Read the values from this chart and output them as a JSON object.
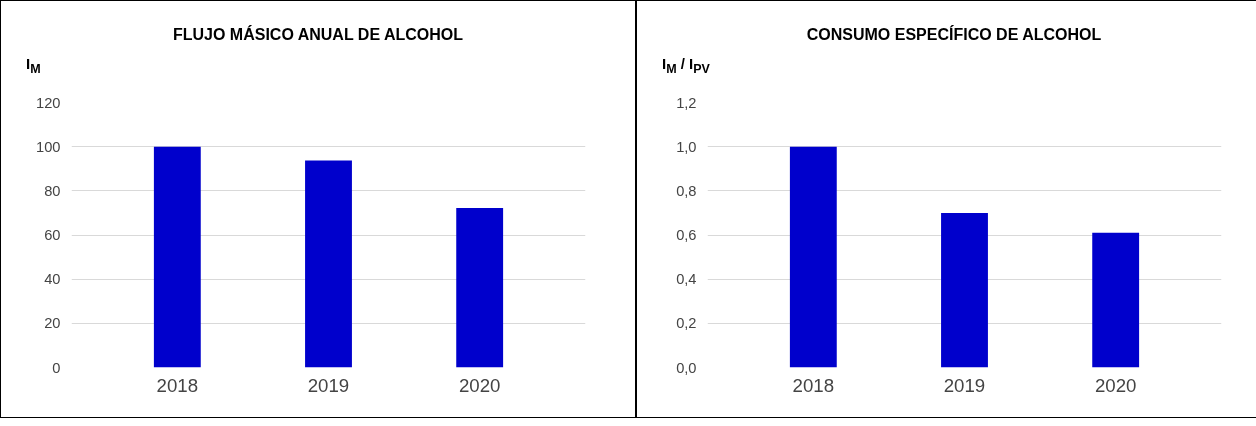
{
  "chart_data": [
    {
      "type": "bar",
      "title": "FLUJO MÁSICO ANUAL DE ALCOHOL",
      "ylabel": "I$_{M}$",
      "categories": [
        "2018",
        "2019",
        "2020"
      ],
      "values": [
        100,
        93.7,
        72.2
      ],
      "color": "#0000cc",
      "ylim": [
        0,
        120
      ],
      "yticks": [
        0,
        20,
        40,
        60,
        80,
        100,
        120
      ],
      "grid": "y"
    },
    {
      "type": "bar",
      "title": "CONSUMO ESPECÍFICO DE ALCOHOL",
      "ylabel": "I$_{M}$ / I$_{PV}$",
      "categories": [
        "2018",
        "2019",
        "2020"
      ],
      "values": [
        1.0,
        0.7,
        0.61
      ],
      "color": "#0000cc",
      "ylim": [
        0,
        1.2
      ],
      "yticks": [
        {
          "value": 0,
          "label": "0,0"
        },
        {
          "value": 0.2,
          "label": "0,2"
        },
        {
          "value": 0.4,
          "label": "0,4"
        },
        {
          "value": 0.6,
          "label": "0,6"
        },
        {
          "value": 0.8,
          "label": "0,8"
        },
        {
          "value": 1.0,
          "label": "1,0"
        },
        {
          "value": 1.2,
          "label": "1,2"
        }
      ],
      "grid": "y"
    }
  ]
}
